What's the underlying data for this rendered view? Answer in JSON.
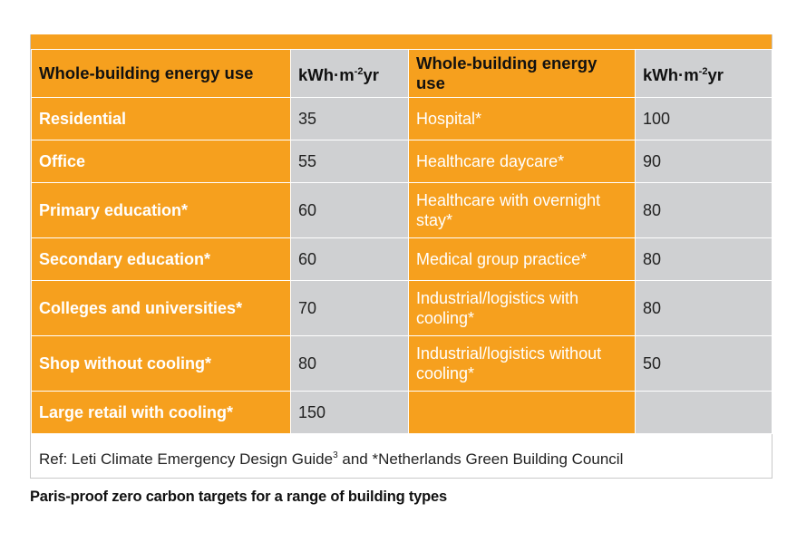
{
  "table": {
    "headers": {
      "col1": "Whole-building energy use",
      "col2_main": "kWh·m",
      "col2_sup": "-2",
      "col2_tail": "yr",
      "col3": "Whole-building energy use",
      "col4_main": "kWh·m",
      "col4_sup": "-2",
      "col4_tail": "yr"
    },
    "rows": [
      {
        "left_label": "Residential",
        "left_value": "35",
        "right_label": "Hospital*",
        "right_value": "100"
      },
      {
        "left_label": "Office",
        "left_value": "55",
        "right_label": "Healthcare daycare*",
        "right_value": "90"
      },
      {
        "left_label": "Primary education*",
        "left_value": "60",
        "right_label": "Healthcare with overnight stay*",
        "right_value": "80"
      },
      {
        "left_label": "Secondary education*",
        "left_value": "60",
        "right_label": "Medical group practice*",
        "right_value": "80"
      },
      {
        "left_label": "Colleges and universities*",
        "left_value": "70",
        "right_label": "Industrial/logistics with cooling*",
        "right_value": "80"
      },
      {
        "left_label": "Shop without cooling*",
        "left_value": "80",
        "right_label": "Industrial/logistics without cooling*",
        "right_value": "50"
      },
      {
        "left_label": "Large retail with cooling*",
        "left_value": "150",
        "right_label": "",
        "right_value": ""
      }
    ]
  },
  "reference": {
    "prefix": "Ref: Leti Climate Emergency Design Guide",
    "sup": "3",
    "suffix": " and *Netherlands Green Building Council"
  },
  "caption": "Paris-proof zero carbon targets for a range of building types",
  "colors": {
    "orange": "#f6a01e",
    "grey": "#cfd0d2"
  }
}
